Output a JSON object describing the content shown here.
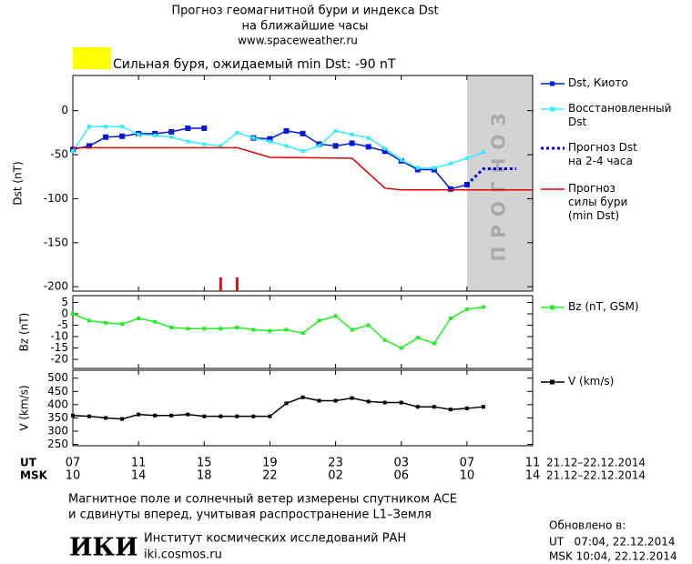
{
  "header": {
    "title": "Прогноз геомагнитной бури и индекса Dst",
    "subtitle": "на ближайшие часы",
    "url": "www.spaceweather.ru",
    "alert": {
      "color": "#ffff00",
      "text": "Сильная буря, ожидаемый min Dst: -90 nT"
    }
  },
  "chart_data": [
    {
      "type": "line",
      "y_label": "Dst (nT)",
      "xlim": [
        0,
        28
      ],
      "ylim": [
        -205,
        40
      ],
      "yticks": [
        0,
        -50,
        -100,
        -150,
        -200
      ],
      "forecast_region": {
        "range": [
          24,
          28
        ],
        "label": "ПРОГНОЗ",
        "color": "#d3d3d3"
      },
      "storm_marks": {
        "x": [
          9,
          10
        ],
        "color": "#ff0000"
      },
      "series": [
        {
          "name": "Dst, Киото",
          "color": "#0018d8",
          "marker": "square",
          "dash": "solid",
          "x": [
            0,
            1,
            2,
            3,
            4,
            5,
            6,
            7,
            8,
            9,
            10,
            11,
            12,
            13,
            14,
            15,
            16,
            17,
            18,
            19,
            20,
            21,
            22,
            23,
            24
          ],
          "values": [
            -44,
            -40,
            -30,
            -29,
            -26,
            -26,
            -24,
            -20,
            -20,
            null,
            null,
            -31,
            -32,
            -23,
            -26,
            -38,
            -40,
            -37,
            -41,
            -46,
            -57,
            -67,
            -67,
            -89,
            -84
          ]
        },
        {
          "name": "Восстановленный\nDst",
          "color": "#33eeff",
          "marker": "square",
          "dash": "solid",
          "x": [
            0,
            1,
            2,
            3,
            4,
            5,
            6,
            7,
            8,
            9,
            10,
            11,
            12,
            13,
            14,
            15,
            16,
            17,
            18,
            19,
            20,
            21,
            22,
            23,
            24,
            25
          ],
          "values": [
            -46,
            -18,
            -18,
            -18,
            -27,
            -28,
            -30,
            -35,
            -38,
            -40,
            -25,
            -31,
            -35,
            -40,
            -46,
            -40,
            -23,
            -27,
            -31,
            -43,
            -56,
            -65,
            -65,
            -60,
            -54,
            -47
          ]
        },
        {
          "name": "Прогноз Dst\nна 2-4 часа",
          "color": "#0000cc",
          "marker": "none",
          "dash": "dotted",
          "x": [
            24,
            25,
            26,
            27
          ],
          "values": [
            -84,
            -66,
            -66,
            -66
          ]
        },
        {
          "name": "Прогноз\nсилы бури\n(min Dst)",
          "color": "#dd0000",
          "marker": "none",
          "dash": "solid",
          "x": [
            0,
            10,
            12,
            17,
            19,
            20,
            28
          ],
          "values": [
            -42,
            -42,
            -53,
            -54,
            -88,
            -90,
            -90
          ]
        }
      ]
    },
    {
      "type": "line",
      "y_label": "Bz (nT)",
      "xlim": [
        0,
        28
      ],
      "ylim": [
        -24,
        8
      ],
      "yticks": [
        5,
        0,
        -5,
        -10,
        -15,
        -20
      ],
      "series": [
        {
          "name": "Bz (nT, GSM)",
          "color": "#22ee22",
          "marker": "square",
          "dash": "solid",
          "x": [
            0,
            1,
            2,
            3,
            4,
            5,
            6,
            7,
            8,
            9,
            10,
            11,
            12,
            13,
            14,
            15,
            16,
            17,
            18,
            19,
            20,
            21,
            22,
            23,
            24,
            25
          ],
          "values": [
            0,
            -3,
            -4,
            -4.5,
            -2,
            -3.5,
            -6,
            -6.5,
            -6.5,
            -6.5,
            -6,
            -7,
            -7.5,
            -7,
            -8.5,
            -3,
            -1,
            -7,
            -5,
            -11.5,
            -15,
            -10.5,
            -13,
            -2,
            2,
            3
          ]
        }
      ]
    },
    {
      "type": "line",
      "y_label": "V (km/s)",
      "xlim": [
        0,
        28
      ],
      "ylim": [
        245,
        530
      ],
      "yticks": [
        500,
        450,
        400,
        350,
        300,
        250
      ],
      "xticks": [
        {
          "value": 0,
          "label": "07"
        },
        {
          "value": 4,
          "label": "11"
        },
        {
          "value": 8,
          "label": "15"
        },
        {
          "value": 12,
          "label": "19"
        },
        {
          "value": 16,
          "label": "23"
        },
        {
          "value": 20,
          "label": "03"
        },
        {
          "value": 24,
          "label": "07"
        },
        {
          "value": 28,
          "label": "11"
        }
      ],
      "x2ticks": [
        {
          "value": 0,
          "label": "10"
        },
        {
          "value": 4,
          "label": "14"
        },
        {
          "value": 8,
          "label": "18"
        },
        {
          "value": 12,
          "label": "22"
        },
        {
          "value": 16,
          "label": "02"
        },
        {
          "value": 20,
          "label": "06"
        },
        {
          "value": 24,
          "label": "10"
        },
        {
          "value": 28,
          "label": "14"
        }
      ],
      "x_label": "UT",
      "x2_label": "MSK",
      "x_dates": "21.12–22.12.2014",
      "x2_dates": "21.12–22.12.2014",
      "series": [
        {
          "name": "V (km/s)",
          "color": "#000000",
          "marker": "square",
          "dash": "solid",
          "x": [
            0,
            1,
            2,
            3,
            4,
            5,
            6,
            7,
            8,
            9,
            10,
            11,
            12,
            13,
            14,
            15,
            16,
            17,
            18,
            19,
            20,
            21,
            22,
            23,
            24,
            25
          ],
          "values": [
            359,
            356,
            350,
            346,
            363,
            359,
            359,
            363,
            356,
            356,
            356,
            356,
            356,
            405,
            428,
            415,
            415,
            425,
            412,
            408,
            408,
            392,
            392,
            382,
            386,
            392
          ]
        }
      ]
    }
  ],
  "footer": {
    "note_1": "Магнитное поле и солнечный ветер измерены спутником ACE",
    "note_2": "и сдвинуты вперед, учитывая распространение L1–Земля",
    "logo": "ИКИ",
    "institute": "Институт космических исследований РАН",
    "site": "iki.cosmos.ru",
    "updated": "Обновлено в:",
    "updated_ut": "UT   07:04, 22.12.2014",
    "updated_msk": "MSK 10:04, 22.12.2014"
  }
}
